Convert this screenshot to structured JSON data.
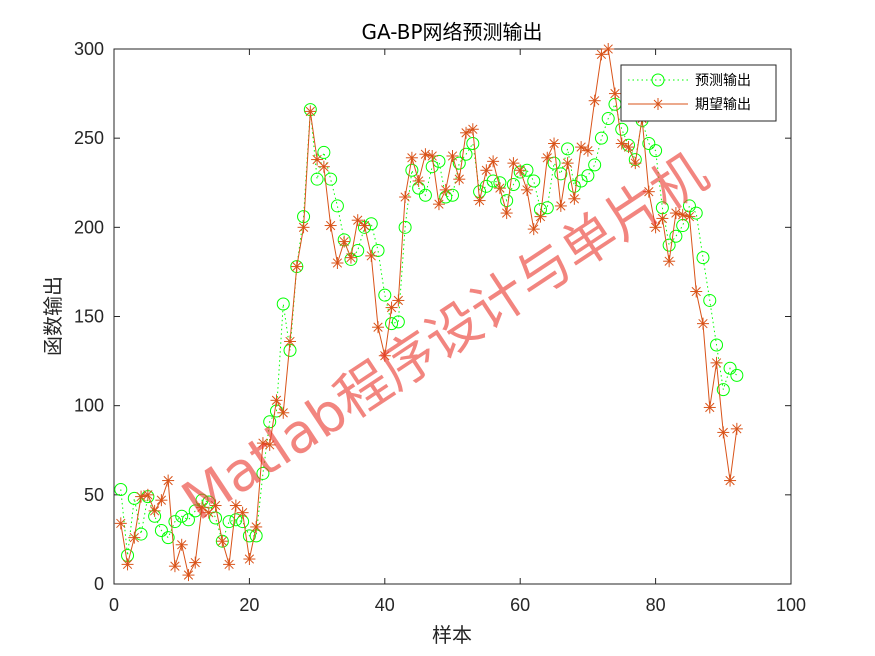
{
  "chart_data": {
    "type": "line",
    "title": "GA-BP网络预测输出",
    "xlabel": "样本",
    "ylabel": "函数输出",
    "xlim": [
      0,
      100
    ],
    "ylim": [
      0,
      300
    ],
    "xticks": [
      0,
      20,
      40,
      60,
      80,
      100
    ],
    "yticks": [
      0,
      50,
      100,
      150,
      200,
      250,
      300
    ],
    "legend_position": "top-right",
    "grid": false,
    "series": [
      {
        "name": "预测输出",
        "color": "#00ff00",
        "line_style": "dotted",
        "marker": "circle",
        "x": [
          1,
          2,
          3,
          4,
          5,
          6,
          7,
          8,
          9,
          10,
          11,
          12,
          13,
          14,
          15,
          16,
          17,
          18,
          19,
          20,
          21,
          22,
          23,
          24,
          25,
          26,
          27,
          28,
          29,
          30,
          31,
          32,
          33,
          34,
          35,
          36,
          37,
          38,
          39,
          40,
          41,
          42,
          43,
          44,
          45,
          46,
          47,
          48,
          49,
          50,
          51,
          52,
          53,
          54,
          55,
          56,
          57,
          58,
          59,
          60,
          61,
          62,
          63,
          64,
          65,
          66,
          67,
          68,
          69,
          70,
          71,
          72,
          73,
          74,
          75,
          76,
          77,
          78,
          79,
          80,
          81,
          82,
          83,
          84,
          85,
          86,
          87,
          88,
          89,
          90,
          91,
          92
        ],
        "values": [
          53,
          16,
          48,
          28,
          49,
          38,
          30,
          26,
          35,
          38,
          36,
          41,
          47,
          46,
          37,
          24,
          35,
          36,
          35,
          27,
          27,
          62,
          91,
          97,
          157,
          131,
          178,
          206,
          266,
          227,
          242,
          227,
          212,
          193,
          182,
          187,
          200,
          202,
          187,
          162,
          146,
          147,
          200,
          232,
          222,
          218,
          234,
          237,
          217,
          218,
          236,
          241,
          247,
          220,
          223,
          226,
          225,
          215,
          224,
          231,
          232,
          226,
          210,
          211,
          236,
          230,
          244,
          223,
          226,
          229,
          235,
          250,
          261,
          269,
          255,
          246,
          238,
          260,
          247,
          243,
          211,
          190,
          195,
          201,
          212,
          208,
          183,
          159,
          134,
          109,
          121,
          117
        ]
      },
      {
        "name": "期望输出",
        "color": "#d95319",
        "line_style": "solid",
        "marker": "asterisk",
        "x": [
          1,
          2,
          3,
          4,
          5,
          6,
          7,
          8,
          9,
          10,
          11,
          12,
          13,
          14,
          15,
          16,
          17,
          18,
          19,
          20,
          21,
          22,
          23,
          24,
          25,
          26,
          27,
          28,
          29,
          30,
          31,
          32,
          33,
          34,
          35,
          36,
          37,
          38,
          39,
          40,
          41,
          42,
          43,
          44,
          45,
          46,
          47,
          48,
          49,
          50,
          51,
          52,
          53,
          54,
          55,
          56,
          57,
          58,
          59,
          60,
          61,
          62,
          63,
          64,
          65,
          66,
          67,
          68,
          69,
          70,
          71,
          72,
          73,
          74,
          75,
          76,
          77,
          78,
          79,
          80,
          81,
          82,
          83,
          84,
          85,
          86,
          87,
          88,
          89,
          90,
          91,
          92
        ],
        "values": [
          34,
          11,
          26,
          49,
          50,
          41,
          47,
          58,
          10,
          22,
          5,
          12,
          43,
          40,
          44,
          24,
          11,
          44,
          40,
          14,
          32,
          79,
          78,
          103,
          96,
          136,
          178,
          200,
          265,
          238,
          234,
          201,
          180,
          192,
          183,
          204,
          201,
          184,
          144,
          128,
          155,
          159,
          217,
          239,
          226,
          241,
          240,
          213,
          221,
          240,
          227,
          253,
          255,
          215,
          232,
          237,
          222,
          208,
          236,
          232,
          221,
          199,
          206,
          239,
          247,
          212,
          236,
          216,
          245,
          243,
          271,
          297,
          300,
          275,
          247,
          245,
          236,
          261,
          220,
          200,
          205,
          181,
          208,
          207,
          206,
          164,
          146,
          99,
          124,
          85,
          58,
          87
        ]
      }
    ],
    "watermark": "Matlab程序设计与单片机"
  }
}
